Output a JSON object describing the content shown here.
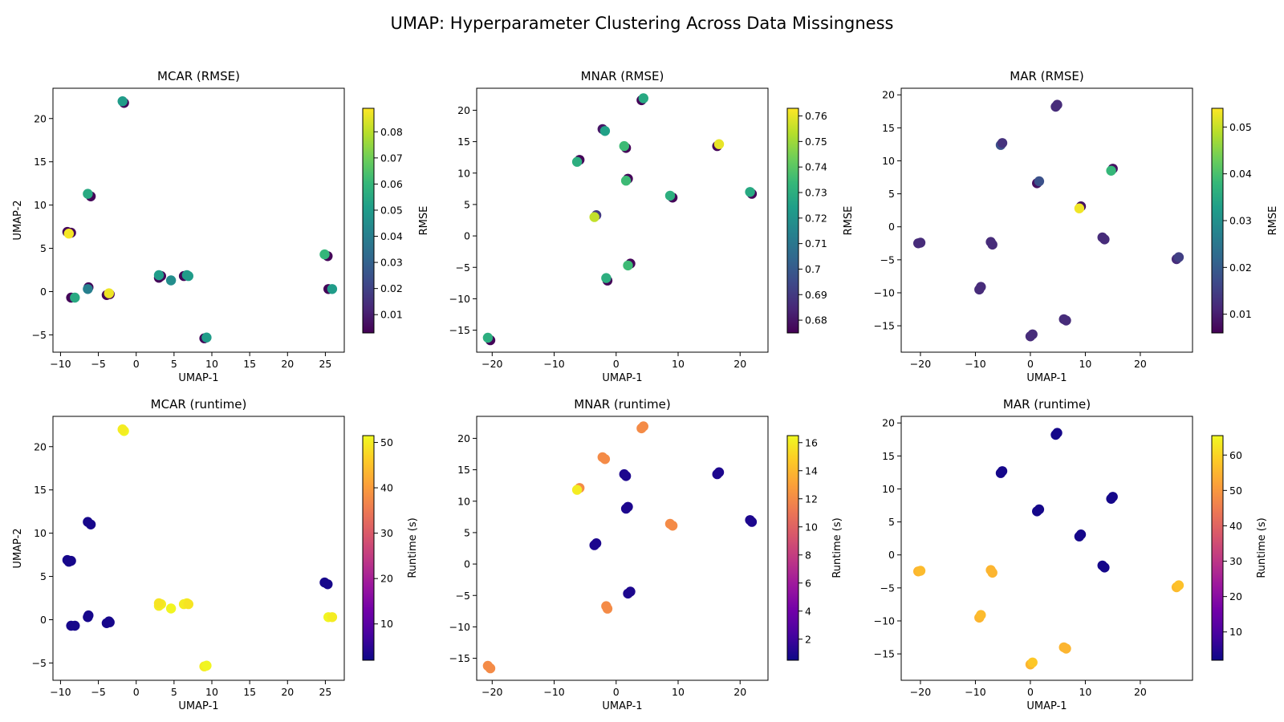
{
  "figure": {
    "title": "UMAP: Hyperparameter Clustering Across Data Missingness"
  },
  "colormaps": {
    "viridis": [
      "#440154",
      "#482878",
      "#3e4989",
      "#31688e",
      "#26828e",
      "#1f9e89",
      "#35b779",
      "#6ece58",
      "#b5de2b",
      "#fde725"
    ],
    "plasma": [
      "#0d0887",
      "#46039f",
      "#7201a8",
      "#9c179e",
      "#bd3786",
      "#d8576b",
      "#ed7953",
      "#fb9f3a",
      "#fdca26",
      "#f0f921"
    ]
  },
  "chart_data": [
    {
      "type": "scatter",
      "title": "MCAR (RMSE)",
      "xlabel": "UMAP-1",
      "ylabel": "UMAP-2",
      "xlim": [
        -11,
        27.5
      ],
      "ylim": [
        -7,
        23.5
      ],
      "xticks": [
        -10,
        -5,
        0,
        5,
        10,
        15,
        20,
        25
      ],
      "yticks": [
        -5,
        0,
        5,
        10,
        15,
        20
      ],
      "colorbar": {
        "label": "RMSE",
        "cmap": "viridis",
        "range": [
          0.003,
          0.089
        ],
        "ticks": [
          0.01,
          0.02,
          0.03,
          0.04,
          0.05,
          0.06,
          0.07,
          0.08
        ]
      },
      "points": [
        {
          "x": -1.6,
          "y": 21.8,
          "c": 0.004
        },
        {
          "x": -1.8,
          "y": 22.0,
          "c": 0.05
        },
        {
          "x": -6.0,
          "y": 11.0,
          "c": 0.004
        },
        {
          "x": -6.4,
          "y": 11.3,
          "c": 0.055
        },
        {
          "x": -9.1,
          "y": 6.9,
          "c": 0.004
        },
        {
          "x": -8.6,
          "y": 6.8,
          "c": 0.004
        },
        {
          "x": -8.9,
          "y": 6.7,
          "c": 0.088
        },
        {
          "x": -8.6,
          "y": -0.7,
          "c": 0.004
        },
        {
          "x": -8.1,
          "y": -0.7,
          "c": 0.055
        },
        {
          "x": -6.3,
          "y": 0.5,
          "c": 0.004
        },
        {
          "x": -6.4,
          "y": 0.3,
          "c": 0.04
        },
        {
          "x": -3.9,
          "y": -0.4,
          "c": 0.004
        },
        {
          "x": -3.5,
          "y": -0.3,
          "c": 0.004
        },
        {
          "x": -3.6,
          "y": -0.2,
          "c": 0.087
        },
        {
          "x": 3.0,
          "y": 1.6,
          "c": 0.004
        },
        {
          "x": 3.3,
          "y": 1.8,
          "c": 0.004
        },
        {
          "x": 3.0,
          "y": 1.9,
          "c": 0.05
        },
        {
          "x": 4.6,
          "y": 1.3,
          "c": 0.045
        },
        {
          "x": 6.3,
          "y": 1.8,
          "c": 0.004
        },
        {
          "x": 6.7,
          "y": 1.9,
          "c": 0.05
        },
        {
          "x": 6.9,
          "y": 1.8,
          "c": 0.05
        },
        {
          "x": 9.0,
          "y": -5.4,
          "c": 0.004
        },
        {
          "x": 9.3,
          "y": -5.3,
          "c": 0.05
        },
        {
          "x": 25.3,
          "y": 4.1,
          "c": 0.004
        },
        {
          "x": 24.9,
          "y": 4.3,
          "c": 0.06
        },
        {
          "x": 25.4,
          "y": 0.3,
          "c": 0.004
        },
        {
          "x": 25.9,
          "y": 0.3,
          "c": 0.05
        }
      ]
    },
    {
      "type": "scatter",
      "title": "MNAR (RMSE)",
      "xlabel": "UMAP-1",
      "ylabel": "",
      "xlim": [
        -22.5,
        24.5
      ],
      "ylim": [
        -18.5,
        23.5
      ],
      "xticks": [
        -20,
        -10,
        0,
        10,
        20
      ],
      "yticks": [
        -15,
        -10,
        -5,
        0,
        5,
        10,
        15,
        20
      ],
      "colorbar": {
        "label": "RMSE",
        "cmap": "viridis",
        "range": [
          0.675,
          0.763
        ],
        "ticks": [
          0.68,
          0.69,
          0.7,
          0.71,
          0.72,
          0.73,
          0.74,
          0.75,
          0.76
        ]
      },
      "points": [
        {
          "x": 4.1,
          "y": 21.6,
          "c": 0.676
        },
        {
          "x": 4.4,
          "y": 21.9,
          "c": 0.728
        },
        {
          "x": -2.2,
          "y": 17.0,
          "c": 0.68
        },
        {
          "x": -1.8,
          "y": 16.7,
          "c": 0.725
        },
        {
          "x": 1.6,
          "y": 14.0,
          "c": 0.676
        },
        {
          "x": 1.3,
          "y": 14.3,
          "c": 0.735
        },
        {
          "x": 16.3,
          "y": 14.3,
          "c": 0.676
        },
        {
          "x": 16.6,
          "y": 14.6,
          "c": 0.76
        },
        {
          "x": -5.9,
          "y": 12.1,
          "c": 0.676
        },
        {
          "x": -6.3,
          "y": 11.8,
          "c": 0.73
        },
        {
          "x": 1.9,
          "y": 9.1,
          "c": 0.676
        },
        {
          "x": 1.6,
          "y": 8.8,
          "c": 0.735
        },
        {
          "x": 9.1,
          "y": 6.1,
          "c": 0.676
        },
        {
          "x": 8.7,
          "y": 6.4,
          "c": 0.73
        },
        {
          "x": 21.9,
          "y": 6.7,
          "c": 0.676
        },
        {
          "x": 21.6,
          "y": 7.0,
          "c": 0.728
        },
        {
          "x": -3.2,
          "y": 3.3,
          "c": 0.69
        },
        {
          "x": -3.5,
          "y": 3.0,
          "c": 0.755
        },
        {
          "x": 2.3,
          "y": -4.4,
          "c": 0.676
        },
        {
          "x": 1.9,
          "y": -4.7,
          "c": 0.735
        },
        {
          "x": -1.4,
          "y": -7.1,
          "c": 0.676
        },
        {
          "x": -1.6,
          "y": -6.7,
          "c": 0.73
        },
        {
          "x": -20.3,
          "y": -16.6,
          "c": 0.676
        },
        {
          "x": -20.7,
          "y": -16.2,
          "c": 0.73
        }
      ]
    },
    {
      "type": "scatter",
      "title": "MAR (RMSE)",
      "xlabel": "UMAP-1",
      "ylabel": "",
      "xlim": [
        -23.5,
        29.5
      ],
      "ylim": [
        -19,
        21
      ],
      "xticks": [
        -20,
        -10,
        0,
        10,
        20
      ],
      "yticks": [
        -15,
        -10,
        -5,
        0,
        5,
        10,
        15,
        20
      ],
      "colorbar": {
        "label": "RMSE",
        "cmap": "viridis",
        "range": [
          0.006,
          0.054
        ],
        "ticks": [
          0.01,
          0.02,
          0.03,
          0.04,
          0.05
        ]
      },
      "points": [
        {
          "x": 4.6,
          "y": 18.2,
          "c": 0.012
        },
        {
          "x": 4.9,
          "y": 18.5,
          "c": 0.012
        },
        {
          "x": -5.4,
          "y": 12.4,
          "c": 0.018
        },
        {
          "x": -5.1,
          "y": 12.7,
          "c": 0.013
        },
        {
          "x": 1.2,
          "y": 6.6,
          "c": 0.008
        },
        {
          "x": 1.6,
          "y": 6.9,
          "c": 0.018
        },
        {
          "x": 15.0,
          "y": 8.8,
          "c": 0.008
        },
        {
          "x": 14.7,
          "y": 8.5,
          "c": 0.038
        },
        {
          "x": 9.2,
          "y": 3.1,
          "c": 0.008
        },
        {
          "x": 8.9,
          "y": 2.8,
          "c": 0.053
        },
        {
          "x": -20.4,
          "y": -2.5,
          "c": 0.012
        },
        {
          "x": -20.0,
          "y": -2.4,
          "c": 0.012
        },
        {
          "x": -7.2,
          "y": -2.3,
          "c": 0.012
        },
        {
          "x": -6.9,
          "y": -2.7,
          "c": 0.012
        },
        {
          "x": 13.1,
          "y": -1.6,
          "c": 0.012
        },
        {
          "x": 13.5,
          "y": -1.9,
          "c": 0.012
        },
        {
          "x": 26.6,
          "y": -4.9,
          "c": 0.012
        },
        {
          "x": 27.0,
          "y": -4.6,
          "c": 0.015
        },
        {
          "x": -9.3,
          "y": -9.5,
          "c": 0.012
        },
        {
          "x": -9.0,
          "y": -9.1,
          "c": 0.012
        },
        {
          "x": 6.1,
          "y": -14.0,
          "c": 0.012
        },
        {
          "x": 6.5,
          "y": -14.2,
          "c": 0.012
        },
        {
          "x": 0.0,
          "y": -16.6,
          "c": 0.012
        },
        {
          "x": 0.4,
          "y": -16.3,
          "c": 0.012
        }
      ]
    },
    {
      "type": "scatter",
      "title": "MCAR (runtime)",
      "xlabel": "UMAP-1",
      "ylabel": "UMAP-2",
      "xlim": [
        -11,
        27.5
      ],
      "ylim": [
        -7,
        23.5
      ],
      "xticks": [
        -10,
        -5,
        0,
        5,
        10,
        15,
        20,
        25
      ],
      "yticks": [
        -5,
        0,
        5,
        10,
        15,
        20
      ],
      "colorbar": {
        "label": "Runtime (s)",
        "cmap": "plasma",
        "range": [
          2,
          51.5
        ],
        "ticks": [
          10,
          20,
          30,
          40,
          50
        ]
      },
      "points": [
        {
          "x": -1.6,
          "y": 21.8,
          "c": 51
        },
        {
          "x": -1.8,
          "y": 22.0,
          "c": 50
        },
        {
          "x": -6.0,
          "y": 11.0,
          "c": 3
        },
        {
          "x": -6.4,
          "y": 11.3,
          "c": 3
        },
        {
          "x": -9.1,
          "y": 6.9,
          "c": 3
        },
        {
          "x": -8.6,
          "y": 6.8,
          "c": 3
        },
        {
          "x": -8.9,
          "y": 6.7,
          "c": 3
        },
        {
          "x": -8.6,
          "y": -0.7,
          "c": 3
        },
        {
          "x": -8.1,
          "y": -0.7,
          "c": 3
        },
        {
          "x": -6.3,
          "y": 0.5,
          "c": 3
        },
        {
          "x": -6.4,
          "y": 0.3,
          "c": 3
        },
        {
          "x": -3.9,
          "y": -0.4,
          "c": 3
        },
        {
          "x": -3.5,
          "y": -0.3,
          "c": 3
        },
        {
          "x": -3.6,
          "y": -0.2,
          "c": 3
        },
        {
          "x": 3.0,
          "y": 1.6,
          "c": 50
        },
        {
          "x": 3.3,
          "y": 1.8,
          "c": 50
        },
        {
          "x": 3.0,
          "y": 1.9,
          "c": 49
        },
        {
          "x": 4.6,
          "y": 1.3,
          "c": 51
        },
        {
          "x": 6.3,
          "y": 1.8,
          "c": 50
        },
        {
          "x": 6.7,
          "y": 1.9,
          "c": 50
        },
        {
          "x": 6.9,
          "y": 1.8,
          "c": 49
        },
        {
          "x": 9.0,
          "y": -5.4,
          "c": 50
        },
        {
          "x": 9.3,
          "y": -5.3,
          "c": 51
        },
        {
          "x": 25.3,
          "y": 4.1,
          "c": 3
        },
        {
          "x": 24.9,
          "y": 4.3,
          "c": 3
        },
        {
          "x": 25.4,
          "y": 0.3,
          "c": 51
        },
        {
          "x": 25.9,
          "y": 0.3,
          "c": 50
        }
      ]
    },
    {
      "type": "scatter",
      "title": "MNAR (runtime)",
      "xlabel": "UMAP-1",
      "ylabel": "",
      "xlim": [
        -22.5,
        24.5
      ],
      "ylim": [
        -18.5,
        23.5
      ],
      "xticks": [
        -20,
        -10,
        0,
        10,
        20
      ],
      "yticks": [
        -15,
        -10,
        -5,
        0,
        5,
        10,
        15,
        20
      ],
      "colorbar": {
        "label": "Runtime (s)",
        "cmap": "plasma",
        "range": [
          0.5,
          16.5
        ],
        "ticks": [
          2,
          4,
          6,
          8,
          10,
          12,
          14,
          16
        ]
      },
      "points": [
        {
          "x": 4.1,
          "y": 21.6,
          "c": 12
        },
        {
          "x": 4.4,
          "y": 21.9,
          "c": 12
        },
        {
          "x": -2.2,
          "y": 17.0,
          "c": 12
        },
        {
          "x": -1.8,
          "y": 16.7,
          "c": 12
        },
        {
          "x": 1.6,
          "y": 14.0,
          "c": 1
        },
        {
          "x": 1.3,
          "y": 14.3,
          "c": 1
        },
        {
          "x": 16.3,
          "y": 14.3,
          "c": 1
        },
        {
          "x": 16.6,
          "y": 14.6,
          "c": 1
        },
        {
          "x": -5.9,
          "y": 12.1,
          "c": 12
        },
        {
          "x": -6.3,
          "y": 11.8,
          "c": 16
        },
        {
          "x": 1.9,
          "y": 9.1,
          "c": 1
        },
        {
          "x": 1.6,
          "y": 8.8,
          "c": 1
        },
        {
          "x": 9.1,
          "y": 6.1,
          "c": 12
        },
        {
          "x": 8.7,
          "y": 6.4,
          "c": 12
        },
        {
          "x": 21.9,
          "y": 6.7,
          "c": 1
        },
        {
          "x": 21.6,
          "y": 7.0,
          "c": 1
        },
        {
          "x": -3.2,
          "y": 3.3,
          "c": 1
        },
        {
          "x": -3.5,
          "y": 3.0,
          "c": 1
        },
        {
          "x": 2.3,
          "y": -4.4,
          "c": 1
        },
        {
          "x": 1.9,
          "y": -4.7,
          "c": 1
        },
        {
          "x": -1.4,
          "y": -7.1,
          "c": 12
        },
        {
          "x": -1.6,
          "y": -6.7,
          "c": 12
        },
        {
          "x": -20.3,
          "y": -16.6,
          "c": 12
        },
        {
          "x": -20.7,
          "y": -16.2,
          "c": 12
        }
      ]
    },
    {
      "type": "scatter",
      "title": "MAR (runtime)",
      "xlabel": "UMAP-1",
      "ylabel": "",
      "xlim": [
        -23.5,
        29.5
      ],
      "ylim": [
        -19,
        21
      ],
      "xticks": [
        -20,
        -10,
        0,
        10,
        20
      ],
      "yticks": [
        -15,
        -10,
        -5,
        0,
        5,
        10,
        15,
        20
      ],
      "colorbar": {
        "label": "Runtime (s)",
        "cmap": "plasma",
        "range": [
          2,
          65.5
        ],
        "ticks": [
          10,
          20,
          30,
          40,
          50,
          60
        ]
      },
      "points": [
        {
          "x": 4.6,
          "y": 18.2,
          "c": 3
        },
        {
          "x": 4.9,
          "y": 18.5,
          "c": 3
        },
        {
          "x": -5.4,
          "y": 12.4,
          "c": 3
        },
        {
          "x": -5.1,
          "y": 12.7,
          "c": 3
        },
        {
          "x": 1.2,
          "y": 6.6,
          "c": 3
        },
        {
          "x": 1.6,
          "y": 6.9,
          "c": 3
        },
        {
          "x": 15.0,
          "y": 8.8,
          "c": 3
        },
        {
          "x": 14.7,
          "y": 8.5,
          "c": 3
        },
        {
          "x": 9.2,
          "y": 3.1,
          "c": 3
        },
        {
          "x": 8.9,
          "y": 2.8,
          "c": 3
        },
        {
          "x": -20.4,
          "y": -2.5,
          "c": 55
        },
        {
          "x": -20.0,
          "y": -2.4,
          "c": 56
        },
        {
          "x": -7.2,
          "y": -2.3,
          "c": 55
        },
        {
          "x": -6.9,
          "y": -2.7,
          "c": 55
        },
        {
          "x": 13.1,
          "y": -1.6,
          "c": 3
        },
        {
          "x": 13.5,
          "y": -1.9,
          "c": 3
        },
        {
          "x": 26.6,
          "y": -4.9,
          "c": 56
        },
        {
          "x": 27.0,
          "y": -4.6,
          "c": 57
        },
        {
          "x": -9.3,
          "y": -9.5,
          "c": 55
        },
        {
          "x": -9.0,
          "y": -9.1,
          "c": 56
        },
        {
          "x": 6.1,
          "y": -14.0,
          "c": 55
        },
        {
          "x": 6.5,
          "y": -14.2,
          "c": 55
        },
        {
          "x": 0.0,
          "y": -16.6,
          "c": 55
        },
        {
          "x": 0.4,
          "y": -16.3,
          "c": 58
        }
      ]
    }
  ]
}
